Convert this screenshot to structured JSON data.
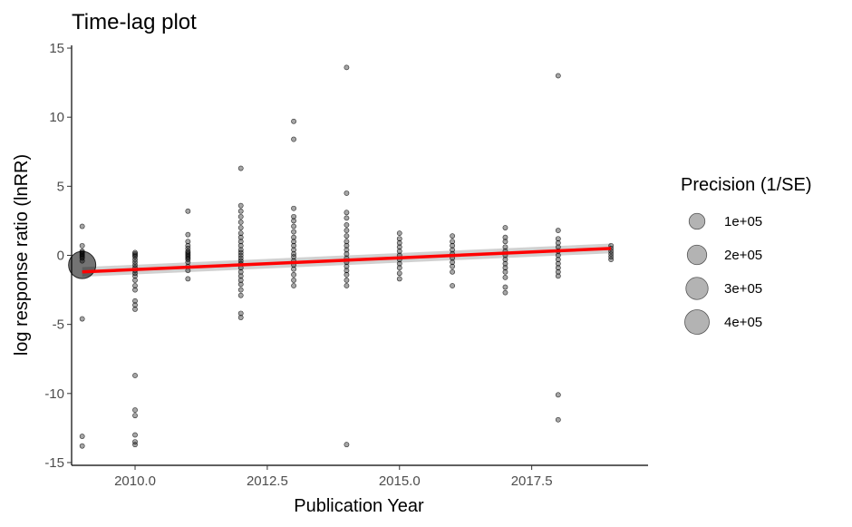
{
  "chart_data": {
    "type": "scatter",
    "title": "Time-lag plot",
    "xlabel": "Publication Year",
    "ylabel": "log response ratio (lnRR)",
    "xlim": [
      2008.8,
      2019.7
    ],
    "ylim": [
      -15.2,
      15.2
    ],
    "xticks": [
      2010.0,
      2012.5,
      2015.0,
      2017.5
    ],
    "xtick_labels": [
      "2010.0",
      "2012.5",
      "2015.0",
      "2017.5"
    ],
    "yticks": [
      -15,
      -10,
      -5,
      0,
      5,
      10,
      15
    ],
    "ytick_labels": [
      "-15",
      "-10",
      "-5",
      "0",
      "5",
      "10",
      "15"
    ],
    "grid": false,
    "point_color": "#000000",
    "fit_color": "#ff0000",
    "ribbon_color": "#bebebe",
    "legend": {
      "title": "Precision (1/SE)",
      "position": "right",
      "entries": [
        {
          "label": "1e+05",
          "value": 100000
        },
        {
          "label": "2e+05",
          "value": 200000
        },
        {
          "label": "3e+05",
          "value": 300000
        },
        {
          "label": "4e+05",
          "value": 400000
        }
      ]
    },
    "fit": {
      "x": [
        2009,
        2019
      ],
      "y": [
        -1.2,
        0.5
      ],
      "ci_lower": [
        -1.55,
        0.15
      ],
      "ci_upper": [
        -0.85,
        0.85
      ]
    },
    "points": [
      {
        "year": 2009,
        "values": [
          -0.7
        ],
        "precision": 400000
      },
      {
        "year": 2009,
        "values": [
          2.1,
          0.7,
          0.3,
          0.2,
          0.1,
          0.0,
          -0.1,
          -0.2,
          -0.4,
          -4.6,
          -13.1,
          -13.8
        ],
        "precision": 5000
      },
      {
        "year": 2010,
        "values": [
          0.2,
          0.1,
          0.0,
          -0.1,
          -0.3,
          -0.5,
          -0.7,
          -0.9,
          -1.1,
          -1.3,
          -1.5,
          -1.8,
          -2.2,
          -2.5,
          -3.3,
          -3.6,
          -3.9,
          -8.7,
          -11.2,
          -11.6,
          -13.0,
          -13.5,
          -13.7
        ],
        "precision": 5000
      },
      {
        "year": 2011,
        "values": [
          3.2,
          1.5,
          1.0,
          0.7,
          0.5,
          0.3,
          0.2,
          0.1,
          0.0,
          -0.1,
          -0.2,
          -0.3,
          -0.5,
          -0.8,
          -1.1,
          -1.7
        ],
        "precision": 5000
      },
      {
        "year": 2012,
        "values": [
          6.3,
          3.6,
          3.2,
          2.8,
          2.4,
          2.0,
          1.6,
          1.3,
          1.0,
          0.7,
          0.4,
          0.2,
          0.0,
          -0.2,
          -0.4,
          -0.6,
          -0.9,
          -1.2,
          -1.5,
          -1.8,
          -2.1,
          -2.5,
          -2.9,
          -4.2,
          -4.5
        ],
        "precision": 5000
      },
      {
        "year": 2013,
        "values": [
          9.7,
          8.4,
          3.4,
          2.8,
          2.5,
          2.1,
          1.7,
          1.3,
          1.0,
          0.7,
          0.4,
          0.1,
          -0.1,
          -0.4,
          -0.7,
          -1.0,
          -1.4,
          -1.8,
          -2.2
        ],
        "precision": 5000
      },
      {
        "year": 2014,
        "values": [
          13.6,
          4.5,
          3.1,
          2.7,
          2.2,
          1.8,
          1.4,
          1.0,
          0.7,
          0.4,
          0.1,
          -0.2,
          -0.5,
          -0.8,
          -1.1,
          -1.4,
          -1.8,
          -2.2,
          -13.7
        ],
        "precision": 5000
      },
      {
        "year": 2015,
        "values": [
          1.6,
          1.2,
          0.9,
          0.6,
          0.3,
          0.0,
          -0.3,
          -0.6,
          -0.9,
          -1.3,
          -1.7
        ],
        "precision": 5000
      },
      {
        "year": 2016,
        "values": [
          1.4,
          1.0,
          0.7,
          0.4,
          0.1,
          -0.2,
          -0.5,
          -0.8,
          -1.2,
          -2.2
        ],
        "precision": 5000
      },
      {
        "year": 2017,
        "values": [
          2.0,
          1.3,
          1.0,
          0.6,
          0.3,
          0.0,
          -0.3,
          -0.6,
          -0.9,
          -1.2,
          -1.6,
          -2.3,
          -2.7
        ],
        "precision": 5000
      },
      {
        "year": 2018,
        "values": [
          13.0,
          1.8,
          1.2,
          0.9,
          0.6,
          0.3,
          0.0,
          -0.3,
          -0.6,
          -0.9,
          -1.2,
          -1.5,
          -10.1,
          -11.9
        ],
        "precision": 5000
      },
      {
        "year": 2019,
        "values": [
          0.7,
          0.5,
          0.3,
          0.1,
          -0.1,
          -0.3
        ],
        "precision": 5000
      }
    ]
  }
}
